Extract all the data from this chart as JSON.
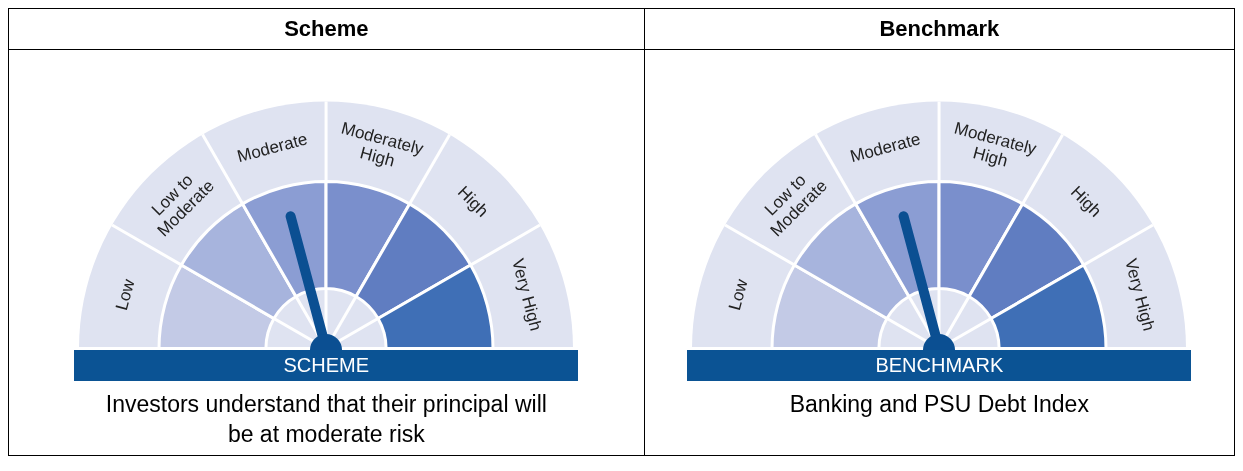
{
  "chart_data": [
    {
      "type": "donut",
      "title": "Scheme",
      "categories": [
        "Low",
        "Low to Moderate",
        "Moderate",
        "Moderately High",
        "High",
        "Very High"
      ],
      "values": [
        16.67,
        16.67,
        16.67,
        16.67,
        16.66,
        16.66
      ],
      "colors": [
        "#c3cae6",
        "#a7b4dd",
        "#8b9dd3",
        "#7a8fcc",
        "#607dc1",
        "#3f6fb6"
      ],
      "needle": "Moderate",
      "annotations": [
        "SCHEME",
        "Investors understand that their principal will be at moderate risk"
      ]
    },
    {
      "type": "donut",
      "title": "Benchmark",
      "categories": [
        "Low",
        "Low to Moderate",
        "Moderate",
        "Moderately High",
        "High",
        "Very High"
      ],
      "values": [
        16.67,
        16.67,
        16.67,
        16.67,
        16.66,
        16.66
      ],
      "colors": [
        "#c3cae6",
        "#a7b4dd",
        "#8b9dd3",
        "#7a8fcc",
        "#607dc1",
        "#3f6fb6"
      ],
      "needle": "Moderate",
      "annotations": [
        "BENCHMARK",
        "Banking and PSU Debt Index"
      ]
    }
  ]
}
